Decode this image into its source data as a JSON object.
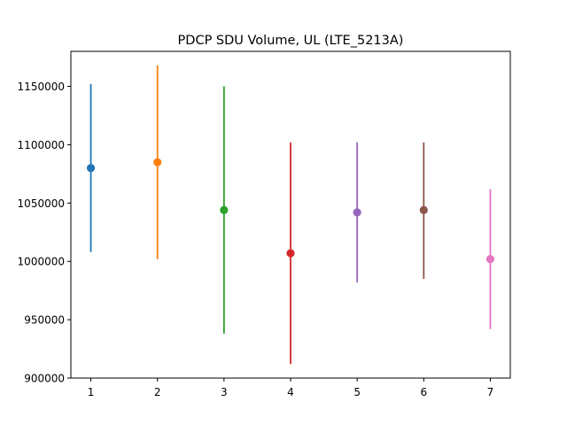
{
  "chart_data": {
    "type": "scatter",
    "title": "PDCP SDU Volume, UL (LTE_5213A)",
    "xlabel": "",
    "ylabel": "",
    "xlim": [
      0.7,
      7.3
    ],
    "ylim": [
      900000,
      1180000
    ],
    "x_ticks": [
      1,
      2,
      3,
      4,
      5,
      6,
      7
    ],
    "y_ticks": [
      900000,
      950000,
      1000000,
      1050000,
      1100000,
      1150000
    ],
    "grid": false,
    "legend": "none",
    "points": [
      {
        "x": 1,
        "y": 1080000,
        "lower": 1008000,
        "upper": 1152000,
        "color": "#1f77b4"
      },
      {
        "x": 2,
        "y": 1085000,
        "lower": 1002000,
        "upper": 1168000,
        "color": "#ff7f0e"
      },
      {
        "x": 3,
        "y": 1044000,
        "lower": 938000,
        "upper": 1150000,
        "color": "#2ca02c"
      },
      {
        "x": 4,
        "y": 1007000,
        "lower": 912000,
        "upper": 1102000,
        "color": "#d62728"
      },
      {
        "x": 5,
        "y": 1042000,
        "lower": 982000,
        "upper": 1102000,
        "color": "#9467bd"
      },
      {
        "x": 6,
        "y": 1044000,
        "lower": 985000,
        "upper": 1102000,
        "color": "#8c564b"
      },
      {
        "x": 7,
        "y": 1002000,
        "lower": 942000,
        "upper": 1062000,
        "color": "#e377c2"
      }
    ]
  }
}
